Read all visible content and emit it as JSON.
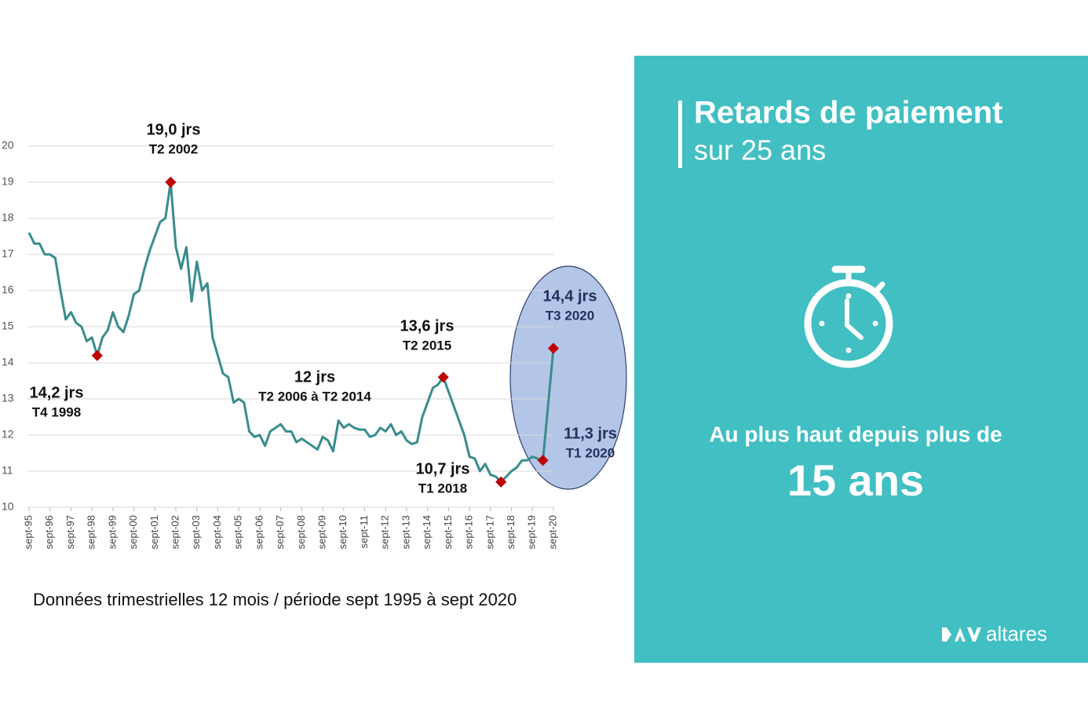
{
  "chart_data": {
    "type": "line",
    "note": "Données trimestrielles 12 mois / période sept 1995 à sept 2020",
    "color": "#3a8c8c",
    "marker_color": "#c00000",
    "grid": true,
    "x": [
      "1995-09",
      "1995-12",
      "1996-03",
      "1996-06",
      "1996-09",
      "1996-12",
      "1997-03",
      "1997-06",
      "1997-09",
      "1997-12",
      "1998-03",
      "1998-06",
      "1998-09",
      "1998-12",
      "1999-03",
      "1999-06",
      "1999-09",
      "1999-12",
      "2000-03",
      "2000-06",
      "2000-09",
      "2000-12",
      "2001-03",
      "2001-06",
      "2001-09",
      "2001-12",
      "2002-03",
      "2002-06",
      "2002-09",
      "2002-12",
      "2003-03",
      "2003-06",
      "2003-09",
      "2003-12",
      "2004-03",
      "2004-06",
      "2004-09",
      "2004-12",
      "2005-03",
      "2005-06",
      "2005-09",
      "2005-12",
      "2006-03",
      "2006-06",
      "2006-09",
      "2006-12",
      "2007-03",
      "2007-06",
      "2007-09",
      "2007-12",
      "2008-03",
      "2008-06",
      "2008-09",
      "2008-12",
      "2009-03",
      "2009-06",
      "2009-09",
      "2009-12",
      "2010-03",
      "2010-06",
      "2010-09",
      "2010-12",
      "2011-03",
      "2011-06",
      "2011-09",
      "2011-12",
      "2012-03",
      "2012-06",
      "2012-09",
      "2012-12",
      "2013-03",
      "2013-06",
      "2013-09",
      "2013-12",
      "2014-03",
      "2014-06",
      "2014-09",
      "2014-12",
      "2015-03",
      "2015-06",
      "2015-09",
      "2015-12",
      "2016-03",
      "2016-06",
      "2016-09",
      "2016-12",
      "2017-03",
      "2017-06",
      "2017-09",
      "2017-12",
      "2018-03",
      "2018-06",
      "2018-09",
      "2018-12",
      "2019-03",
      "2019-06",
      "2019-09",
      "2019-12",
      "2020-03",
      "2020-06",
      "2020-09"
    ],
    "values": [
      17.6,
      17.3,
      17.3,
      17.0,
      17.0,
      16.9,
      16.0,
      15.2,
      15.4,
      15.1,
      15.0,
      14.6,
      14.7,
      14.2,
      14.7,
      14.9,
      15.4,
      15.0,
      14.85,
      15.3,
      15.9,
      16.0,
      16.6,
      17.1,
      17.5,
      17.9,
      18.0,
      19.0,
      17.2,
      16.6,
      17.2,
      15.7,
      16.8,
      16.0,
      16.2,
      14.7,
      14.2,
      13.7,
      13.6,
      12.9,
      13.0,
      12.9,
      12.1,
      11.95,
      12.0,
      11.7,
      12.1,
      12.2,
      12.3,
      12.1,
      12.1,
      11.8,
      11.9,
      11.8,
      11.7,
      11.6,
      11.95,
      11.85,
      11.55,
      12.4,
      12.2,
      12.3,
      12.2,
      12.15,
      12.15,
      11.95,
      12.0,
      12.2,
      12.1,
      12.3,
      12.0,
      12.1,
      11.85,
      11.75,
      11.8,
      12.5,
      12.9,
      13.3,
      13.4,
      13.6,
      13.2,
      12.8,
      12.4,
      12.0,
      11.4,
      11.35,
      11.0,
      11.2,
      10.9,
      10.85,
      10.7,
      10.85,
      11.0,
      11.1,
      11.3,
      11.3,
      11.4,
      11.35,
      11.3,
      12.85,
      14.4
    ],
    "xlim": [
      "1995-09",
      "2020-09"
    ],
    "xticks": [
      {
        "value": "1995-09",
        "label": "sept-95"
      },
      {
        "value": "1996-09",
        "label": "sept-96"
      },
      {
        "value": "1997-09",
        "label": "sept-97"
      },
      {
        "value": "1998-09",
        "label": "sept-98"
      },
      {
        "value": "1999-09",
        "label": "sept-99"
      },
      {
        "value": "2000-09",
        "label": "sept-00"
      },
      {
        "value": "2001-09",
        "label": "sept-01"
      },
      {
        "value": "2002-09",
        "label": "sept-02"
      },
      {
        "value": "2003-09",
        "label": "sept-03"
      },
      {
        "value": "2004-09",
        "label": "sept-04"
      },
      {
        "value": "2005-09",
        "label": "sept-05"
      },
      {
        "value": "2006-09",
        "label": "sept-06"
      },
      {
        "value": "2007-09",
        "label": "sept-07"
      },
      {
        "value": "2008-09",
        "label": "sept-08"
      },
      {
        "value": "2009-09",
        "label": "sept-09"
      },
      {
        "value": "2010-09",
        "label": "sept-10"
      },
      {
        "value": "2011-09",
        "label": "sept-11"
      },
      {
        "value": "2012-09",
        "label": "sept-12"
      },
      {
        "value": "2013-09",
        "label": "sept-13"
      },
      {
        "value": "2014-09",
        "label": "sept-14"
      },
      {
        "value": "2015-09",
        "label": "sept-15"
      },
      {
        "value": "2016-09",
        "label": "sept-16"
      },
      {
        "value": "2017-09",
        "label": "sept-17"
      },
      {
        "value": "2018-09",
        "label": "sept-18"
      },
      {
        "value": "2019-09",
        "label": "sept-19"
      },
      {
        "value": "2020-09",
        "label": "sept-20"
      }
    ],
    "ylim": [
      10,
      20
    ],
    "yticks": [
      10,
      11,
      12,
      13,
      14,
      15,
      16,
      17,
      18,
      19,
      20
    ],
    "annotations": [
      {
        "x": "1998-12",
        "y": 14.2,
        "text": "14,2 jrs",
        "subtext": "T4 1998"
      },
      {
        "x": "2002-06",
        "y": 19.0,
        "text": "19,0 jrs",
        "subtext": "T2 2002"
      },
      {
        "text": "12 jrs",
        "subtext": "T2 2006 à T2 2014"
      },
      {
        "x": "2015-06",
        "y": 13.6,
        "text": "13,6 jrs",
        "subtext": "T2 2015"
      },
      {
        "x": "2018-03",
        "y": 10.7,
        "text": "10,7 jrs",
        "subtext": "T1 2018"
      },
      {
        "x": "2020-09",
        "y": 14.4,
        "text": "14,4 jrs",
        "subtext": "T3 2020"
      },
      {
        "x": "2020-03",
        "y": 11.3,
        "text": "11,3 jrs",
        "subtext": "T1 2020"
      }
    ]
  },
  "panel": {
    "title": "Retards de paiement",
    "subtitle": "sur 25 ans",
    "headline": "Au plus haut depuis plus de",
    "highlight": "15 ans",
    "logo": "altares"
  }
}
